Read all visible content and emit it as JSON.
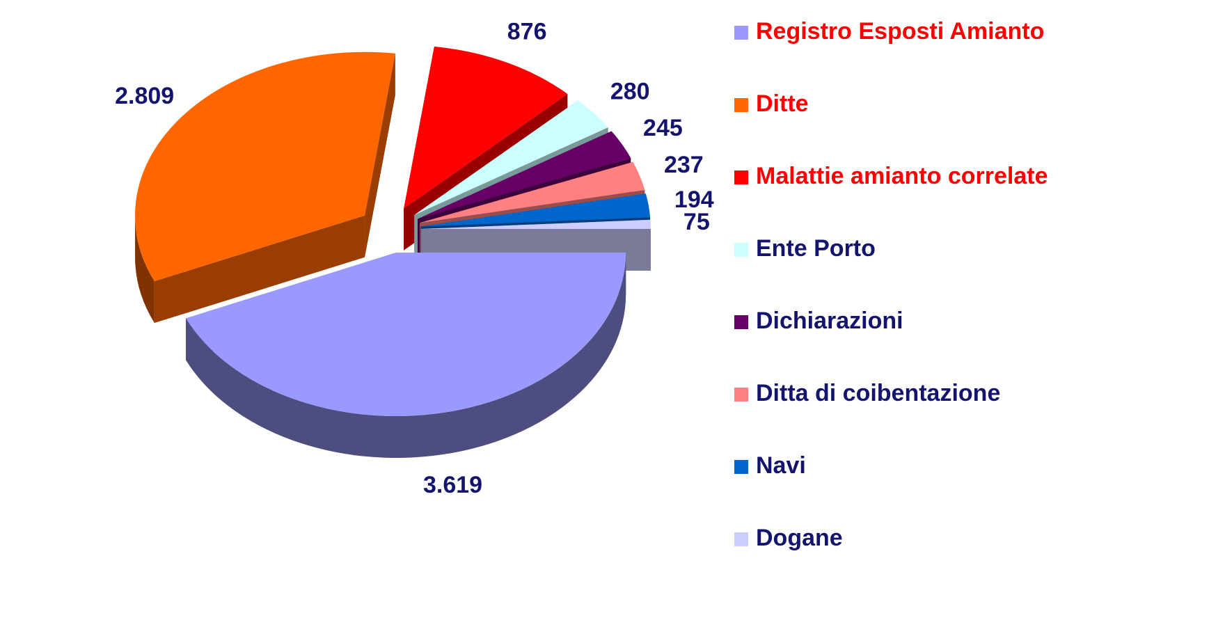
{
  "chart_data": {
    "type": "pie",
    "categories": [
      "Registro Esposti Amianto",
      "Ditte",
      "Malattie amianto correlate",
      "Ente Porto",
      "Dichiarazioni",
      "Ditta di coibentazione",
      "Navi",
      "Dogane"
    ],
    "values": [
      3619,
      2809,
      876,
      280,
      245,
      237,
      194,
      75
    ],
    "value_labels": [
      "3.619",
      "2.809",
      "876",
      "280",
      "245",
      "237",
      "194",
      "75"
    ],
    "colors": [
      "#9999ff",
      "#ff6600",
      "#ff0000",
      "#ccffff",
      "#660066",
      "#ff8080",
      "#0066cc",
      "#ccccff"
    ],
    "legend_label_colors": [
      "#ff0000",
      "#ff0000",
      "#ff0000",
      "#14146e",
      "#14146e",
      "#14146e",
      "#14146e",
      "#14146e"
    ],
    "legend": "right"
  }
}
